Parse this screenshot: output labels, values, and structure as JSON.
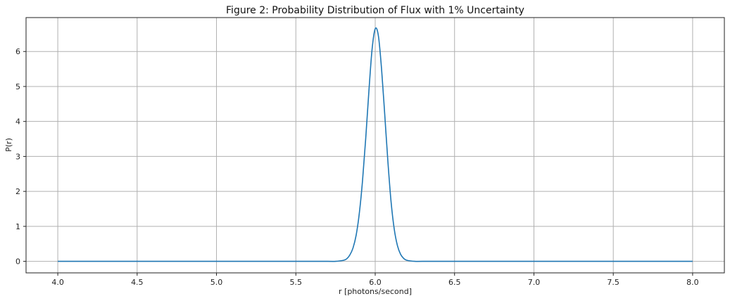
{
  "chart_data": {
    "type": "line",
    "title": "Figure 2: Probability Distribution of Flux with 1% Uncertainty",
    "xlabel": "r [photons/second]",
    "ylabel": "P(r)",
    "xlim": [
      3.8,
      8.2
    ],
    "ylim": [
      -0.33,
      6.97
    ],
    "xticks": [
      4.0,
      4.5,
      5.0,
      5.5,
      6.0,
      6.5,
      7.0,
      7.5,
      8.0
    ],
    "xtick_labels": [
      "4.0",
      "4.5",
      "5.0",
      "5.5",
      "6.0",
      "6.5",
      "7.0",
      "7.5",
      "8.0"
    ],
    "yticks": [
      0,
      1,
      2,
      3,
      4,
      5,
      6
    ],
    "ytick_labels": [
      "0",
      "1",
      "2",
      "3",
      "4",
      "5",
      "6"
    ],
    "grid": true,
    "series": [
      {
        "color": "#1f77b4",
        "x": [
          4.0,
          5.5,
          5.7,
          5.75,
          5.8,
          5.82,
          5.84,
          5.86,
          5.88,
          5.9,
          5.92,
          5.94,
          5.96,
          5.98,
          6.0,
          6.02,
          6.04,
          6.06,
          6.08,
          6.1,
          6.12,
          6.14,
          6.16,
          6.18,
          6.2,
          6.25,
          6.3,
          6.5,
          8.0
        ],
        "y": [
          0.0,
          0.0,
          0.0,
          0.0,
          0.03,
          0.07,
          0.18,
          0.38,
          0.75,
          1.38,
          2.3,
          3.5,
          4.85,
          6.05,
          6.65,
          6.45,
          5.5,
          4.2,
          2.85,
          1.7,
          0.92,
          0.45,
          0.2,
          0.08,
          0.03,
          0.0,
          0.0,
          0.0,
          0.0
        ]
      }
    ]
  }
}
